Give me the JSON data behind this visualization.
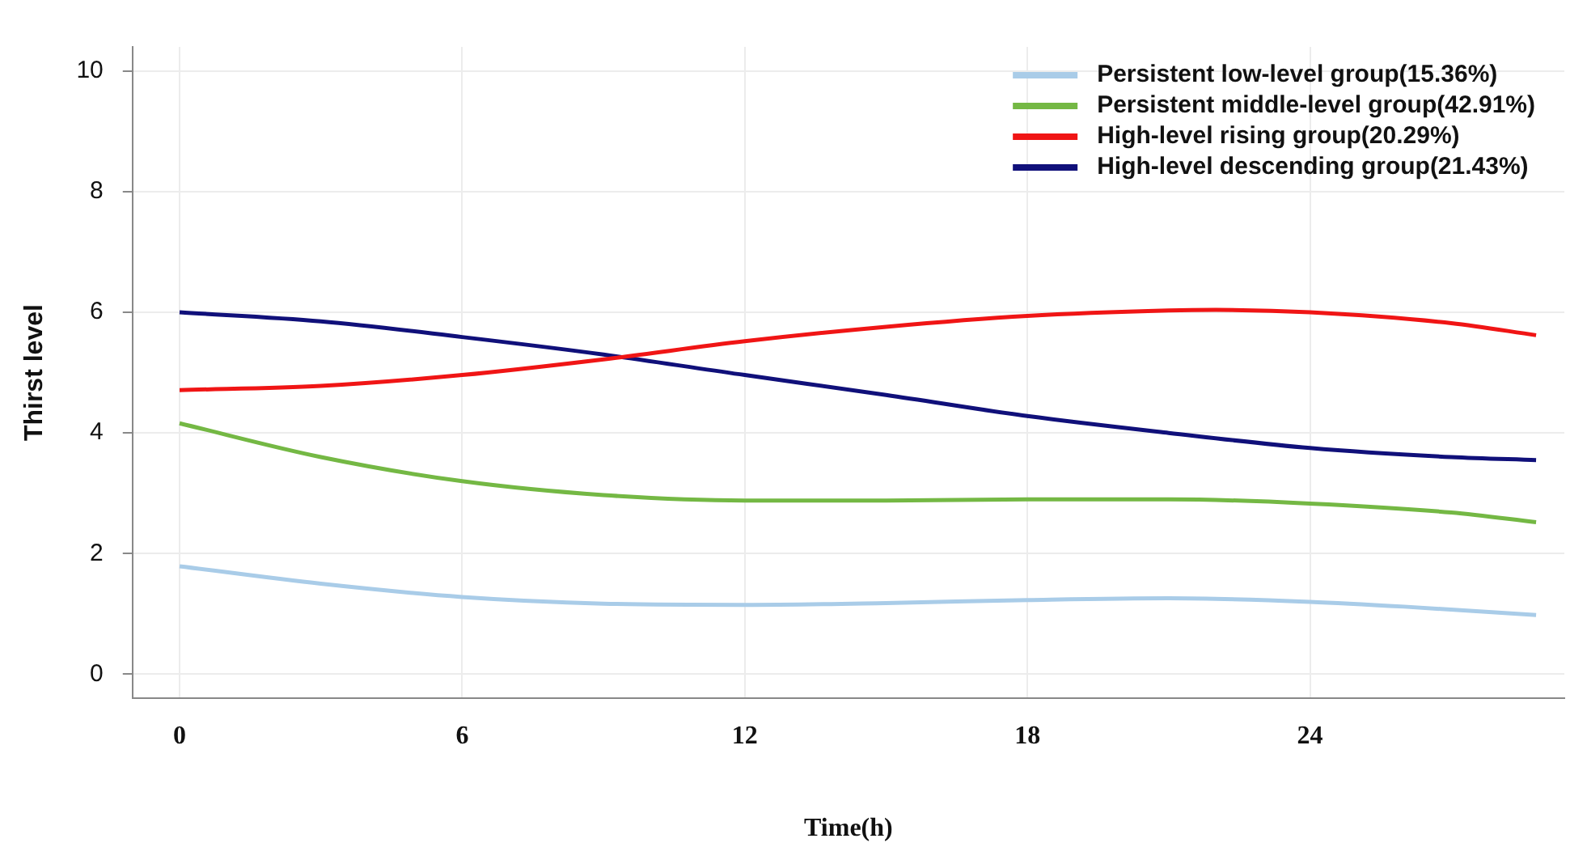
{
  "chart_data": {
    "type": "line",
    "xlabel": "Time(h)",
    "ylabel": "Thirst level",
    "xlim": [
      -1,
      29.4
    ],
    "xticks": [
      0,
      6,
      12,
      18,
      24
    ],
    "ylim": [
      -0.4,
      10.4
    ],
    "yticks": [
      0,
      2,
      4,
      6,
      8,
      10
    ],
    "grid": true,
    "legend": "top right",
    "marker": "none",
    "line_style": "solid",
    "series": [
      {
        "name": "Persistent low-level group(15.36%)",
        "color": "#a9cce8",
        "x": [
          0,
          3,
          6,
          9,
          12,
          15,
          18,
          21,
          24,
          26,
          28.8
        ],
        "values": [
          1.79,
          1.5,
          1.28,
          1.17,
          1.15,
          1.18,
          1.23,
          1.26,
          1.2,
          1.12,
          0.98
        ]
      },
      {
        "name": "Persistent middle-level group(42.91%)",
        "color": "#74b844",
        "x": [
          0,
          3,
          6,
          9,
          12,
          15,
          18,
          21,
          24,
          27,
          28.8
        ],
        "values": [
          4.16,
          3.6,
          3.2,
          2.97,
          2.88,
          2.88,
          2.9,
          2.9,
          2.83,
          2.68,
          2.52
        ]
      },
      {
        "name": "High-level rising group(20.29%)",
        "color": "#f01515",
        "x": [
          0,
          3,
          6,
          9,
          12,
          15,
          18,
          21,
          22,
          24,
          27,
          28.8
        ],
        "values": [
          4.71,
          4.78,
          4.96,
          5.22,
          5.52,
          5.76,
          5.94,
          6.03,
          6.04,
          6.0,
          5.82,
          5.62
        ]
      },
      {
        "name": "High-level descending group(21.43%)",
        "color": "#10107a",
        "x": [
          0,
          3,
          6,
          9,
          12,
          15,
          18,
          21,
          24,
          27,
          28.8
        ],
        "values": [
          6.0,
          5.85,
          5.59,
          5.3,
          4.96,
          4.63,
          4.28,
          4.0,
          3.75,
          3.6,
          3.55
        ]
      }
    ]
  }
}
